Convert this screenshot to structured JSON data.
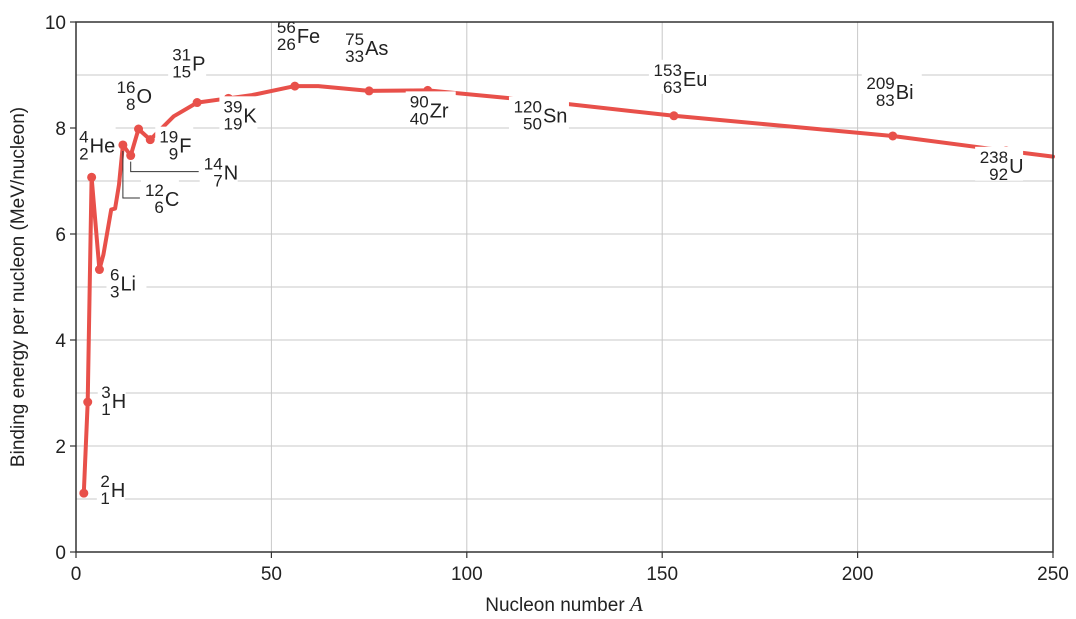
{
  "chart_data": {
    "type": "line",
    "title": "",
    "xlabel": "Nucleon number",
    "xlabel_var": "A",
    "ylabel": "Binding energy per nucleon (MeV/nucleon)",
    "xlim": [
      0,
      250
    ],
    "ylim": [
      0,
      10
    ],
    "xticks": [
      "0",
      "50",
      "100",
      "150",
      "200",
      "250"
    ],
    "yticks": [
      "0",
      "2",
      "4",
      "6",
      "8",
      "10"
    ],
    "grid": true,
    "line_color": "#e8504a",
    "curve": {
      "x": [
        2,
        3,
        4,
        6,
        7,
        9,
        10,
        11,
        12,
        14,
        16,
        19,
        25,
        31,
        39,
        45,
        56,
        62,
        75,
        90,
        120,
        153,
        209,
        238,
        250
      ],
      "y": [
        1.11,
        2.83,
        7.07,
        5.33,
        5.61,
        6.46,
        6.48,
        6.93,
        7.68,
        7.48,
        7.98,
        7.78,
        8.22,
        8.48,
        8.56,
        8.62,
        8.79,
        8.79,
        8.7,
        8.71,
        8.5,
        8.23,
        7.85,
        7.57,
        7.46
      ]
    },
    "points": [
      {
        "A": 2,
        "value": 1.11,
        "mass": "2",
        "atomic": "1",
        "symbol": "H"
      },
      {
        "A": 3,
        "value": 2.83,
        "mass": "3",
        "atomic": "1",
        "symbol": "H"
      },
      {
        "A": 4,
        "value": 7.07,
        "mass": "4",
        "atomic": "2",
        "symbol": "He"
      },
      {
        "A": 6,
        "value": 5.33,
        "mass": "6",
        "atomic": "3",
        "symbol": "Li"
      },
      {
        "A": 12,
        "value": 7.68,
        "mass": "12",
        "atomic": "6",
        "symbol": "C"
      },
      {
        "A": 14,
        "value": 7.48,
        "mass": "14",
        "atomic": "7",
        "symbol": "N"
      },
      {
        "A": 16,
        "value": 7.98,
        "mass": "16",
        "atomic": "8",
        "symbol": "O"
      },
      {
        "A": 19,
        "value": 7.78,
        "mass": "19",
        "atomic": "9",
        "symbol": "F"
      },
      {
        "A": 31,
        "value": 8.48,
        "mass": "31",
        "atomic": "15",
        "symbol": "P"
      },
      {
        "A": 39,
        "value": 8.56,
        "mass": "39",
        "atomic": "19",
        "symbol": "K"
      },
      {
        "A": 56,
        "value": 8.79,
        "mass": "56",
        "atomic": "26",
        "symbol": "Fe"
      },
      {
        "A": 75,
        "value": 8.7,
        "mass": "75",
        "atomic": "33",
        "symbol": "As"
      },
      {
        "A": 90,
        "value": 8.71,
        "mass": "90",
        "atomic": "40",
        "symbol": "Zr"
      },
      {
        "A": 120,
        "value": 8.5,
        "mass": "120",
        "atomic": "50",
        "symbol": "Sn"
      },
      {
        "A": 153,
        "value": 8.23,
        "mass": "153",
        "atomic": "63",
        "symbol": "Eu"
      },
      {
        "A": 209,
        "value": 7.85,
        "mass": "209",
        "atomic": "83",
        "symbol": "Bi"
      },
      {
        "A": 238,
        "value": 7.57,
        "mass": "238",
        "atomic": "92",
        "symbol": "U"
      }
    ]
  }
}
